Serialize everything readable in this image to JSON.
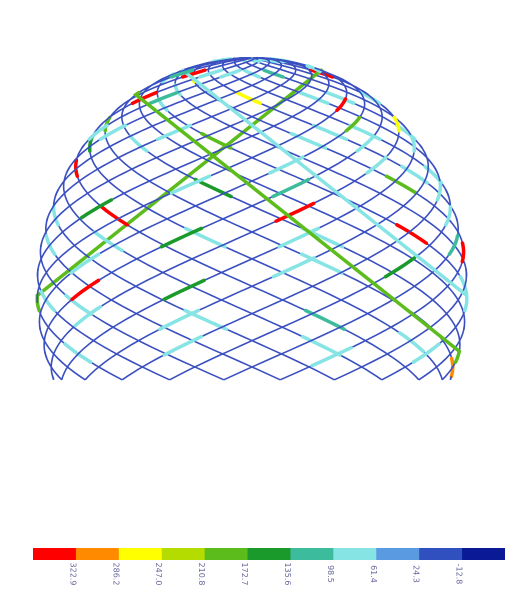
{
  "legend": {
    "colors": [
      "#ff0000",
      "#ff8a00",
      "#ffff00",
      "#b4dc00",
      "#5cbc1c",
      "#1a9a2a",
      "#3cbc9c",
      "#86e4e4",
      "#5a9ae0",
      "#3050c0",
      "#0a1a96"
    ],
    "labels": [
      "322.9",
      "286.2",
      "247.0",
      "210.8",
      "172.7",
      "135.6",
      "98.5",
      "61.4",
      "24.3",
      "-12.8"
    ]
  }
}
